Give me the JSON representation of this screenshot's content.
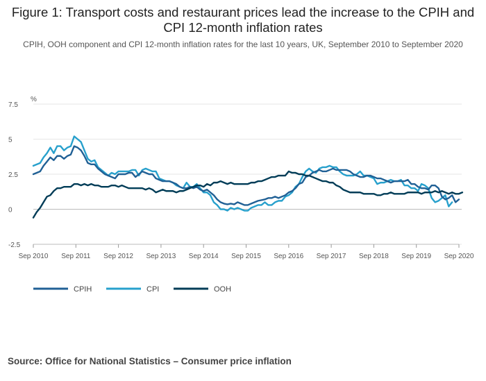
{
  "chart_data": {
    "type": "line",
    "title": "Figure 1: Transport costs and restaurant prices lead the increase to the CPIH and CPI 12-month inflation rates",
    "subtitle": "CPIH, OOH component and CPI 12-month inflation rates for the last 10 years, UK, September 2010 to September 2020",
    "ylabel": "%",
    "xlabel": "",
    "ylim": [
      -2.5,
      7.5
    ],
    "yticks": [
      "7.5",
      "5",
      "2.5",
      "0",
      "-2.5"
    ],
    "xticks": [
      "Sep 2010",
      "Sep 2011",
      "Sep 2012",
      "Sep 2013",
      "Sep 2014",
      "Sep 2015",
      "Sep 2016",
      "Sep 2017",
      "Sep 2018",
      "Sep 2019",
      "Sep 2020"
    ],
    "legend": [
      "CPIH",
      "CPI",
      "OOH"
    ],
    "colors": {
      "CPIH": "#206095",
      "CPI": "#27a0cc",
      "OOH": "#003c57"
    },
    "series": [
      {
        "name": "CPIH",
        "values": [
          2.5,
          2.6,
          2.7,
          3.1,
          3.4,
          3.7,
          3.5,
          3.8,
          3.8,
          3.6,
          3.8,
          3.9,
          4.5,
          4.4,
          4.2,
          3.8,
          3.3,
          3.2,
          3.2,
          2.9,
          2.7,
          2.5,
          2.4,
          2.3,
          2.2,
          2.5,
          2.5,
          2.5,
          2.6,
          2.6,
          2.3,
          2.5,
          2.7,
          2.6,
          2.5,
          2.5,
          2.2,
          2.1,
          2.0,
          2.0,
          2.0,
          1.9,
          1.8,
          1.6,
          1.5,
          1.5,
          1.6,
          1.5,
          1.6,
          1.4,
          1.3,
          1.4,
          1.2,
          1.0,
          0.7,
          0.5,
          0.4,
          0.35,
          0.4,
          0.35,
          0.5,
          0.4,
          0.3,
          0.3,
          0.4,
          0.5,
          0.6,
          0.65,
          0.7,
          0.8,
          0.8,
          0.9,
          0.8,
          0.9,
          1.0,
          1.2,
          1.3,
          1.5,
          1.8,
          1.9,
          2.3,
          2.4,
          2.6,
          2.7,
          2.8,
          2.7,
          2.7,
          2.8,
          2.9,
          2.8,
          2.8,
          2.8,
          2.8,
          2.7,
          2.5,
          2.4,
          2.3,
          2.3,
          2.4,
          2.4,
          2.3,
          2.2,
          2.2,
          2.1,
          2.0,
          1.9,
          2.0,
          2.0,
          2.0,
          2.0,
          2.1,
          1.8,
          1.8,
          1.6,
          1.5,
          1.5,
          1.4,
          1.7,
          1.7,
          1.5,
          0.9,
          0.7,
          0.8,
          1.0,
          0.5,
          0.7
        ]
      },
      {
        "name": "CPI",
        "values": [
          3.1,
          3.2,
          3.3,
          3.7,
          4.0,
          4.4,
          4.0,
          4.5,
          4.5,
          4.2,
          4.4,
          4.5,
          5.2,
          5.0,
          4.8,
          4.2,
          3.6,
          3.4,
          3.5,
          3.0,
          2.8,
          2.6,
          2.4,
          2.6,
          2.5,
          2.7,
          2.7,
          2.7,
          2.7,
          2.8,
          2.8,
          2.4,
          2.8,
          2.9,
          2.8,
          2.7,
          2.7,
          2.2,
          2.1,
          2.0,
          2.0,
          1.9,
          1.7,
          1.6,
          1.5,
          1.9,
          1.6,
          1.6,
          1.8,
          1.5,
          1.2,
          1.2,
          1.0,
          0.5,
          0.3,
          0.0,
          0.0,
          -0.1,
          0.1,
          0.0,
          0.1,
          0.0,
          -0.1,
          -0.1,
          0.1,
          0.2,
          0.3,
          0.3,
          0.5,
          0.3,
          0.3,
          0.5,
          0.6,
          0.6,
          0.9,
          1.0,
          1.2,
          1.6,
          1.8,
          2.3,
          2.7,
          2.9,
          2.7,
          2.6,
          2.9,
          3.0,
          3.0,
          3.1,
          3.0,
          3.0,
          2.7,
          2.5,
          2.4,
          2.4,
          2.4,
          2.5,
          2.7,
          2.4,
          2.4,
          2.3,
          2.2,
          1.8,
          1.9,
          1.9,
          2.0,
          2.1,
          2.0,
          2.0,
          2.1,
          1.7,
          1.7,
          1.5,
          1.5,
          1.3,
          1.8,
          1.7,
          1.5,
          0.8,
          0.5,
          0.6,
          0.8,
          1.0,
          0.2,
          0.5
        ]
      },
      {
        "name": "OOH",
        "values": [
          -0.6,
          -0.2,
          0.1,
          0.5,
          0.9,
          1.0,
          1.3,
          1.5,
          1.5,
          1.6,
          1.6,
          1.6,
          1.8,
          1.8,
          1.7,
          1.8,
          1.7,
          1.8,
          1.7,
          1.7,
          1.6,
          1.6,
          1.6,
          1.7,
          1.7,
          1.6,
          1.7,
          1.6,
          1.5,
          1.5,
          1.5,
          1.5,
          1.5,
          1.4,
          1.5,
          1.4,
          1.2,
          1.3,
          1.4,
          1.3,
          1.3,
          1.3,
          1.2,
          1.3,
          1.3,
          1.4,
          1.5,
          1.6,
          1.7,
          1.7,
          1.6,
          1.8,
          1.7,
          1.9,
          1.9,
          2.0,
          1.9,
          1.8,
          1.9,
          1.8,
          1.8,
          1.8,
          1.8,
          1.8,
          1.9,
          1.9,
          2.0,
          2.0,
          2.1,
          2.2,
          2.3,
          2.3,
          2.4,
          2.4,
          2.4,
          2.7,
          2.6,
          2.6,
          2.5,
          2.5,
          2.4,
          2.4,
          2.3,
          2.2,
          2.1,
          2.0,
          2.0,
          1.9,
          1.9,
          1.7,
          1.6,
          1.4,
          1.3,
          1.2,
          1.2,
          1.2,
          1.2,
          1.1,
          1.1,
          1.1,
          1.1,
          1.0,
          1.0,
          1.1,
          1.1,
          1.2,
          1.1,
          1.1,
          1.1,
          1.1,
          1.2,
          1.2,
          1.2,
          1.2,
          1.1,
          1.2,
          1.2,
          1.2,
          1.3,
          1.2,
          1.3,
          1.2,
          1.1,
          1.2,
          1.1,
          1.1,
          1.2
        ]
      }
    ]
  },
  "source": "Source: Office for National Statistics – Consumer price inflation"
}
